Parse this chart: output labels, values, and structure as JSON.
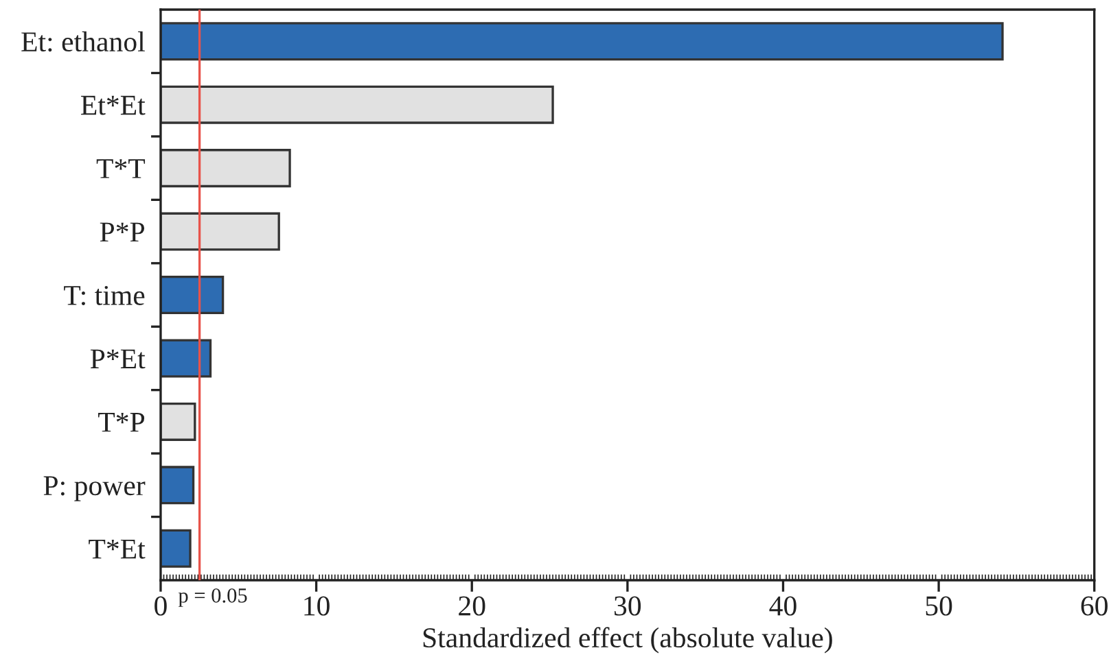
{
  "chart_data": {
    "type": "bar",
    "orientation": "horizontal",
    "categories": [
      "Et: ethanol",
      "Et*Et",
      "T*T",
      "P*P",
      "T: time",
      "P*Et",
      "T*P",
      "P: power",
      "T*Et"
    ],
    "values": [
      54.1,
      25.2,
      8.3,
      7.6,
      4.0,
      3.2,
      2.2,
      2.1,
      1.9
    ],
    "colors": [
      "#2d6cb2",
      "#e1e1e1",
      "#e1e1e1",
      "#e1e1e1",
      "#2d6cb2",
      "#2d6cb2",
      "#e1e1e1",
      "#2d6cb2",
      "#2d6cb2"
    ],
    "xlabel": "Standardized effect (absolute value)",
    "xlim": [
      0,
      60
    ],
    "xticks": [
      0,
      10,
      20,
      30,
      40,
      50,
      60
    ],
    "ref_lines": [
      {
        "axis": "x",
        "value": 2.5,
        "color": "#e8534a"
      }
    ],
    "annotations": [
      "p = 0.05"
    ]
  }
}
